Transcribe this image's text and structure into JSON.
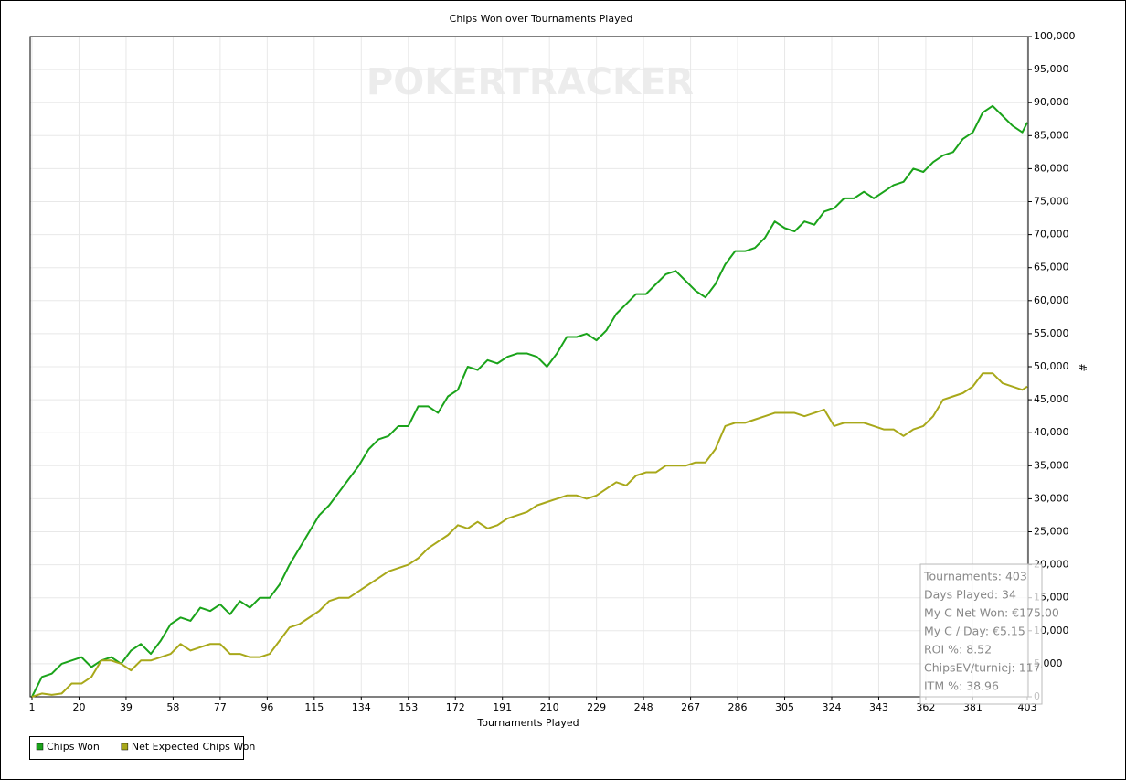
{
  "chart_data": {
    "type": "line",
    "title": "Chips Won over Tournaments Played",
    "watermark": "POKERTRACKER",
    "xlabel": "Tournaments Played",
    "ylabel": "#",
    "x": [
      1,
      5,
      9,
      13,
      17,
      21,
      25,
      29,
      33,
      37,
      41,
      45,
      49,
      53,
      57,
      61,
      65,
      69,
      73,
      77,
      81,
      85,
      89,
      93,
      97,
      101,
      105,
      109,
      113,
      117,
      121,
      125,
      129,
      133,
      137,
      141,
      145,
      149,
      153,
      157,
      161,
      165,
      169,
      173,
      177,
      181,
      185,
      189,
      193,
      197,
      201,
      205,
      209,
      213,
      217,
      221,
      225,
      229,
      233,
      237,
      241,
      245,
      249,
      253,
      257,
      261,
      265,
      269,
      273,
      277,
      281,
      285,
      289,
      293,
      297,
      301,
      305,
      309,
      313,
      317,
      321,
      325,
      329,
      333,
      337,
      341,
      345,
      349,
      353,
      357,
      361,
      365,
      369,
      373,
      377,
      381,
      385,
      389,
      393,
      397,
      401,
      403
    ],
    "series": [
      {
        "name": "Chips Won",
        "color": "#1aa31a",
        "values": [
          0,
          3000,
          3500,
          5000,
          5500,
          6000,
          4500,
          5500,
          6000,
          5000,
          7000,
          8000,
          6500,
          8500,
          11000,
          12000,
          11500,
          13500,
          13000,
          14000,
          12500,
          14500,
          13500,
          15000,
          15000,
          17000,
          20000,
          22500,
          25000,
          27500,
          29000,
          31000,
          33000,
          35000,
          37500,
          39000,
          39500,
          41000,
          41000,
          44000,
          44000,
          43000,
          45500,
          46500,
          50000,
          49500,
          51000,
          50500,
          51500,
          52000,
          52000,
          51500,
          50000,
          52000,
          54500,
          54500,
          55000,
          54000,
          55500,
          58000,
          59500,
          61000,
          61000,
          62500,
          64000,
          64500,
          63000,
          61500,
          60500,
          62500,
          65500,
          67500,
          67500,
          68000,
          69500,
          72000,
          71000,
          70500,
          72000,
          71500,
          73500,
          74000,
          75500,
          75500,
          76500,
          75500,
          76500,
          77500,
          78000,
          80000,
          79500,
          81000,
          82000,
          82500,
          84500,
          85500,
          88500,
          89500,
          88000,
          86500,
          85500,
          87000
        ]
      },
      {
        "name": "Net Expected Chips Won",
        "color": "#a8a81a",
        "values": [
          0,
          500,
          300,
          500,
          2000,
          2000,
          3000,
          5500,
          5500,
          5000,
          4000,
          5500,
          5500,
          6000,
          6500,
          8000,
          7000,
          7500,
          8000,
          8000,
          6500,
          6500,
          6000,
          6000,
          6500,
          8500,
          10500,
          11000,
          12000,
          13000,
          14500,
          15000,
          15000,
          16000,
          17000,
          18000,
          19000,
          19500,
          20000,
          21000,
          22500,
          23500,
          24500,
          26000,
          25500,
          26500,
          25500,
          26000,
          27000,
          27500,
          28000,
          29000,
          29500,
          30000,
          30500,
          30500,
          30000,
          30500,
          31500,
          32500,
          32000,
          33500,
          34000,
          34000,
          35000,
          35000,
          35000,
          35500,
          35500,
          37500,
          41000,
          41500,
          41500,
          42000,
          42500,
          43000,
          43000,
          43000,
          42500,
          43000,
          43500,
          41000,
          41500,
          41500,
          41500,
          41000,
          40500,
          40500,
          39500,
          40500,
          41000,
          42500,
          45000,
          45500,
          46000,
          47000,
          49000,
          49000,
          47500,
          47000,
          46500,
          47000
        ]
      }
    ],
    "xlim": [
      1,
      403
    ],
    "xticks": [
      1,
      20,
      39,
      58,
      77,
      96,
      115,
      134,
      153,
      172,
      191,
      210,
      229,
      248,
      267,
      286,
      305,
      324,
      343,
      362,
      381,
      403
    ],
    "ylim": [
      0,
      100000
    ],
    "yticks": [
      0,
      {
        "value": 5000,
        "label": "5,000"
      },
      {
        "value": 10000,
        "label": "10,000"
      },
      {
        "value": 15000,
        "label": "15,000"
      },
      {
        "value": 20000,
        "label": "20,000"
      },
      {
        "value": 25000,
        "label": "25,000"
      },
      {
        "value": 30000,
        "label": "30,000"
      },
      {
        "value": 35000,
        "label": "35,000"
      },
      {
        "value": 40000,
        "label": "40,000"
      },
      {
        "value": 45000,
        "label": "45,000"
      },
      {
        "value": 50000,
        "label": "50,000"
      },
      {
        "value": 55000,
        "label": "55,000"
      },
      {
        "value": 60000,
        "label": "60,000"
      },
      {
        "value": 65000,
        "label": "65,000"
      },
      {
        "value": 70000,
        "label": "70,000"
      },
      {
        "value": 75000,
        "label": "75,000"
      },
      {
        "value": 80000,
        "label": "80,000"
      },
      {
        "value": 85000,
        "label": "85,000"
      },
      {
        "value": 90000,
        "label": "90,000"
      },
      {
        "value": 95000,
        "label": "95,000"
      },
      {
        "value": 100000,
        "label": "100,000"
      }
    ],
    "grid": true,
    "legend": "bottom-left",
    "stats": [
      "Tournaments: 403",
      "Days Played: 34",
      "My C Net Won: €175.00",
      "My C / Day: €5.15",
      "ROI %: 8.52",
      "ChipsEV/turniej: 117",
      "ITM %: 38.96"
    ]
  }
}
